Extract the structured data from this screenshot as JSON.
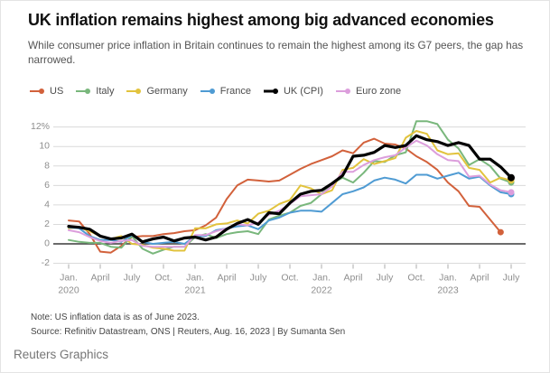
{
  "header": {
    "title": "UK inflation remains highest among big advanced economies",
    "subtitle": "While consumer price inflation in Britain continues to remain the highest among its G7 peers, the gap has narrowed."
  },
  "chart_data": {
    "type": "line",
    "x_unit": "month",
    "x_range": [
      "Jan. 2020",
      "July 2023"
    ],
    "ylim": [
      -2,
      12
    ],
    "grid": "horizontal",
    "legend_position": "top",
    "y_ticks": [
      {
        "label": "12%",
        "value": 12
      },
      {
        "label": "10",
        "value": 10
      },
      {
        "label": "8",
        "value": 8
      },
      {
        "label": "6",
        "value": 6
      },
      {
        "label": "4",
        "value": 4
      },
      {
        "label": "2",
        "value": 2
      },
      {
        "label": "0",
        "value": 0
      },
      {
        "label": "-2",
        "value": -2
      }
    ],
    "x_ticks": [
      {
        "month": "Jan.",
        "year": "2020"
      },
      {
        "month": "April"
      },
      {
        "month": "July"
      },
      {
        "month": "Oct."
      },
      {
        "month": "Jan.",
        "year": "2021"
      },
      {
        "month": "April"
      },
      {
        "month": "July"
      },
      {
        "month": "Oct."
      },
      {
        "month": "Jan.",
        "year": "2022"
      },
      {
        "month": "April"
      },
      {
        "month": "July"
      },
      {
        "month": "Oct."
      },
      {
        "month": "Jan.",
        "year": "2023"
      },
      {
        "month": "April"
      },
      {
        "month": "July"
      }
    ],
    "series": [
      {
        "name": "US",
        "color": "#d2613b",
        "values": [
          2.4,
          2.3,
          1.0,
          -0.8,
          -0.9,
          -0.2,
          0.7,
          0.8,
          0.8,
          1.0,
          1.1,
          1.3,
          1.4,
          1.9,
          2.7,
          4.6,
          6.0,
          6.6,
          6.5,
          6.4,
          6.5,
          7.1,
          7.7,
          8.2,
          8.6,
          9.0,
          9.6,
          9.3,
          10.4,
          10.8,
          10.3,
          10.2,
          9.8,
          9.0,
          8.4,
          7.6,
          6.3,
          5.4,
          3.9,
          3.8,
          2.5,
          1.2
        ]
      },
      {
        "name": "Italy",
        "color": "#79b77c",
        "values": [
          0.4,
          0.2,
          0.1,
          0.1,
          -0.3,
          -0.4,
          0.8,
          -0.5,
          -1.0,
          -0.6,
          -0.3,
          -0.3,
          0.7,
          1.0,
          0.6,
          1.0,
          1.2,
          1.3,
          1.0,
          2.5,
          2.9,
          3.2,
          3.9,
          4.2,
          5.1,
          6.2,
          6.8,
          6.3,
          7.3,
          8.5,
          8.4,
          9.1,
          9.4,
          12.6,
          12.6,
          12.3,
          10.7,
          9.8,
          8.1,
          8.7,
          8.0,
          6.7,
          6.3
        ]
      },
      {
        "name": "Germany",
        "color": "#e2c33d",
        "values": [
          1.6,
          1.7,
          1.3,
          0.8,
          0.5,
          0.8,
          0.0,
          -0.1,
          -0.4,
          -0.5,
          -0.7,
          -0.7,
          1.6,
          1.6,
          2.0,
          2.1,
          2.4,
          2.1,
          3.1,
          3.4,
          4.1,
          4.5,
          6.0,
          5.7,
          5.1,
          5.5,
          7.6,
          7.8,
          8.7,
          8.2,
          8.5,
          8.8,
          10.9,
          11.6,
          11.3,
          9.6,
          9.2,
          9.3,
          7.8,
          7.6,
          6.3,
          6.8,
          6.5
        ]
      },
      {
        "name": "France",
        "color": "#4f9bd3",
        "values": [
          1.7,
          1.6,
          0.8,
          0.4,
          0.4,
          0.2,
          0.9,
          0.2,
          0.0,
          0.1,
          0.2,
          0.0,
          0.8,
          0.8,
          1.4,
          1.6,
          1.8,
          1.9,
          1.5,
          2.4,
          2.7,
          3.2,
          3.4,
          3.4,
          3.3,
          4.2,
          5.1,
          5.4,
          5.8,
          6.5,
          6.8,
          6.6,
          6.2,
          7.1,
          7.1,
          6.7,
          7.0,
          7.3,
          6.7,
          6.9,
          6.0,
          5.3,
          5.1
        ]
      },
      {
        "name": "UK (CPI)",
        "color": "#000000",
        "emphasis": true,
        "values": [
          1.8,
          1.7,
          1.5,
          0.8,
          0.5,
          0.6,
          1.0,
          0.2,
          0.5,
          0.7,
          0.3,
          0.6,
          0.7,
          0.4,
          0.7,
          1.5,
          2.1,
          2.5,
          2.0,
          3.2,
          3.1,
          4.2,
          5.1,
          5.4,
          5.5,
          6.2,
          7.0,
          9.0,
          9.1,
          9.4,
          10.1,
          9.9,
          10.1,
          11.1,
          10.7,
          10.5,
          10.1,
          10.4,
          10.1,
          8.7,
          8.7,
          7.9,
          6.8
        ]
      },
      {
        "name": "Euro zone",
        "color": "#dc9edc",
        "values": [
          1.4,
          1.2,
          0.7,
          0.3,
          0.1,
          0.3,
          0.4,
          -0.2,
          -0.3,
          -0.3,
          -0.3,
          -0.3,
          0.9,
          0.9,
          1.3,
          1.6,
          2.0,
          1.9,
          2.2,
          3.0,
          3.4,
          4.1,
          4.9,
          5.0,
          5.1,
          5.9,
          7.4,
          7.4,
          8.1,
          8.6,
          8.9,
          9.1,
          9.9,
          10.6,
          10.1,
          9.2,
          8.6,
          8.5,
          6.9,
          7.0,
          6.1,
          5.5,
          5.3
        ]
      }
    ]
  },
  "footer": {
    "note": "Note: US inflation data is as of June 2023.",
    "source": "Source: Refinitiv Datastream, ONS | Reuters, Aug. 16, 2023 | By Sumanta Sen",
    "brand": "Reuters Graphics"
  }
}
